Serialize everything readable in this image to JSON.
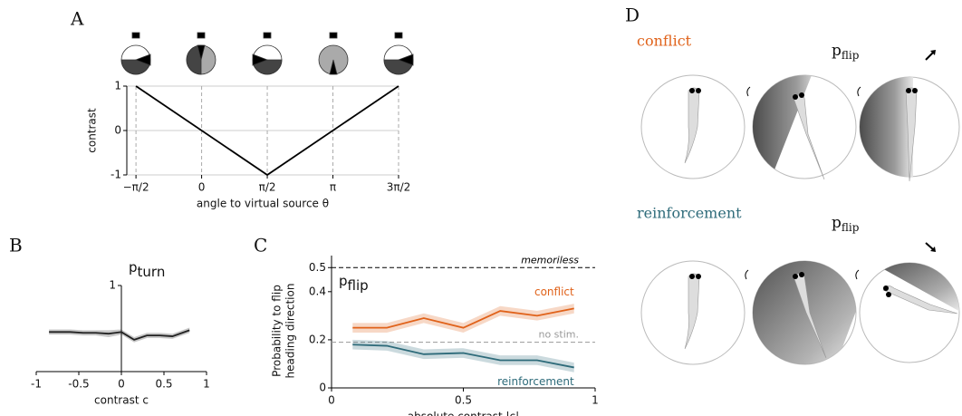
{
  "chart_data": [
    {
      "type": "line",
      "panel": "A",
      "xlabel": "angle to virtual source θ",
      "ylabel": "contrast",
      "x": [
        -1.5708,
        1.5708,
        4.7124
      ],
      "values": [
        1,
        -1,
        1
      ],
      "color": "#000000",
      "xlim": [
        -1.79,
        4.7124
      ],
      "ylim": [
        -1,
        1
      ],
      "xticks": [
        {
          "value": -1.5708,
          "label": "−π/2"
        },
        0,
        {
          "value": 1.5708,
          "label": "π/2"
        },
        {
          "value": 3.1416,
          "label": "π"
        },
        {
          "value": 4.7124,
          "label": "3π/2"
        }
      ],
      "yticks": [
        -1,
        0,
        1
      ],
      "grid": true
    },
    {
      "type": "line",
      "panel": "B",
      "title": "p",
      "title_sub": "turn",
      "xlabel": "contrast c",
      "x": [
        -0.85,
        -0.6,
        -0.45,
        -0.3,
        -0.15,
        0,
        0.15,
        0.3,
        0.45,
        0.6,
        0.8
      ],
      "values": [
        0.46,
        0.46,
        0.45,
        0.45,
        0.44,
        0.46,
        0.37,
        0.42,
        0.42,
        0.41,
        0.48
      ],
      "error": [
        0.03,
        0.03,
        0.03,
        0.03,
        0.04,
        0.03,
        0.03,
        0.03,
        0.03,
        0.03,
        0.03
      ],
      "color": "#222222",
      "xlim": [
        -1,
        1
      ],
      "ylim": [
        0,
        1
      ],
      "xticks": [
        -1,
        -0.5,
        0,
        0.5,
        1
      ],
      "yticks": [
        1
      ]
    },
    {
      "type": "line",
      "panel": "C",
      "title": "p",
      "title_sub": "flip",
      "xlabel": "absolute contrast |c|",
      "ylabel": [
        "Probability to flip",
        "heading direction"
      ],
      "x": [
        0.08,
        0.21,
        0.35,
        0.5,
        0.64,
        0.78,
        0.92
      ],
      "series": [
        {
          "name": "conflict",
          "color": "#e0621a",
          "values": [
            0.25,
            0.25,
            0.29,
            0.25,
            0.32,
            0.3,
            0.33
          ],
          "error": [
            0.02,
            0.02,
            0.02,
            0.02,
            0.02,
            0.02,
            0.02
          ]
        },
        {
          "name": "reinforcement",
          "color": "#2e6b7a",
          "values": [
            0.18,
            0.175,
            0.14,
            0.145,
            0.115,
            0.115,
            0.085
          ],
          "error": [
            0.02,
            0.02,
            0.02,
            0.02,
            0.02,
            0.02,
            0.02
          ]
        }
      ],
      "hlines": [
        {
          "value": 0.5,
          "label": "memoriless",
          "color": "#000000"
        },
        {
          "value": 0.19,
          "label": "no stim.",
          "color": "#999999"
        }
      ],
      "xlim": [
        0,
        1
      ],
      "ylim": [
        0,
        0.55
      ],
      "xticks": [
        0,
        0.5,
        1
      ],
      "yticks": [
        0,
        0.2,
        0.4,
        0.5
      ]
    }
  ],
  "panel_d": {
    "label": "D",
    "conflict": "conflict",
    "reinforcement": "reinforcement",
    "p_flip_top": {
      "p": "p",
      "sub": "flip"
    },
    "p_flip_bottom": {
      "p": "p",
      "sub": "flip"
    }
  }
}
